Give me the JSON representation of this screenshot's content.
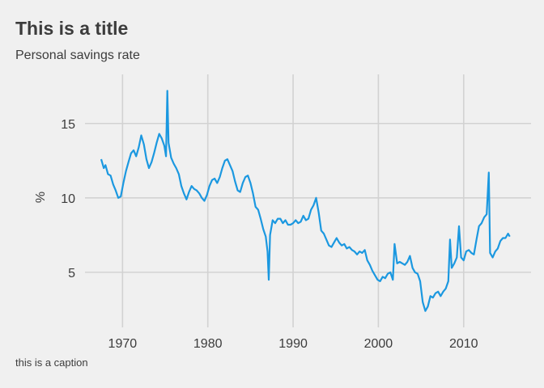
{
  "chart_data": {
    "type": "line",
    "title": "This is a title",
    "subtitle": "Personal savings rate",
    "caption": "this is a caption",
    "xlabel": "",
    "ylabel": "%",
    "xlim": [
      1965.6,
      2017.9
    ],
    "ylim": [
      1.3,
      18.3
    ],
    "xticks": [
      1970,
      1980,
      1990,
      2000,
      2010
    ],
    "yticks": [
      5,
      10,
      15
    ],
    "grid": true,
    "series_color": "#1b98e0",
    "series": [
      {
        "values": [
          [
            1967.5,
            12.6
          ],
          [
            1967.8,
            12.0
          ],
          [
            1968.0,
            12.2
          ],
          [
            1968.3,
            11.6
          ],
          [
            1968.6,
            11.5
          ],
          [
            1968.9,
            10.9
          ],
          [
            1969.2,
            10.5
          ],
          [
            1969.5,
            10.0
          ],
          [
            1969.8,
            10.1
          ],
          [
            1970.1,
            11.0
          ],
          [
            1970.4,
            11.8
          ],
          [
            1970.7,
            12.4
          ],
          [
            1971.0,
            13.0
          ],
          [
            1971.3,
            13.2
          ],
          [
            1971.6,
            12.8
          ],
          [
            1971.9,
            13.4
          ],
          [
            1972.2,
            14.2
          ],
          [
            1972.5,
            13.6
          ],
          [
            1972.8,
            12.6
          ],
          [
            1973.1,
            12.0
          ],
          [
            1973.4,
            12.4
          ],
          [
            1973.7,
            13.0
          ],
          [
            1974.0,
            13.7
          ],
          [
            1974.3,
            14.3
          ],
          [
            1974.6,
            14.0
          ],
          [
            1974.9,
            13.5
          ],
          [
            1975.1,
            12.8
          ],
          [
            1975.25,
            17.2
          ],
          [
            1975.4,
            13.7
          ],
          [
            1975.7,
            12.7
          ],
          [
            1976.0,
            12.3
          ],
          [
            1976.3,
            12.0
          ],
          [
            1976.6,
            11.6
          ],
          [
            1976.9,
            10.8
          ],
          [
            1977.2,
            10.3
          ],
          [
            1977.5,
            9.9
          ],
          [
            1977.8,
            10.4
          ],
          [
            1978.1,
            10.8
          ],
          [
            1978.4,
            10.6
          ],
          [
            1978.7,
            10.5
          ],
          [
            1979.0,
            10.3
          ],
          [
            1979.3,
            10.0
          ],
          [
            1979.6,
            9.8
          ],
          [
            1979.9,
            10.2
          ],
          [
            1980.2,
            10.8
          ],
          [
            1980.5,
            11.2
          ],
          [
            1980.8,
            11.3
          ],
          [
            1981.1,
            11.0
          ],
          [
            1981.4,
            11.4
          ],
          [
            1981.7,
            12.0
          ],
          [
            1982.0,
            12.5
          ],
          [
            1982.3,
            12.6
          ],
          [
            1982.6,
            12.2
          ],
          [
            1982.9,
            11.8
          ],
          [
            1983.2,
            11.1
          ],
          [
            1983.5,
            10.5
          ],
          [
            1983.8,
            10.4
          ],
          [
            1984.1,
            11.0
          ],
          [
            1984.4,
            11.4
          ],
          [
            1984.7,
            11.5
          ],
          [
            1985.0,
            11.0
          ],
          [
            1985.3,
            10.3
          ],
          [
            1985.6,
            9.4
          ],
          [
            1985.9,
            9.2
          ],
          [
            1986.2,
            8.6
          ],
          [
            1986.5,
            7.9
          ],
          [
            1986.8,
            7.4
          ],
          [
            1987.0,
            6.4
          ],
          [
            1987.15,
            4.5
          ],
          [
            1987.3,
            7.5
          ],
          [
            1987.6,
            8.5
          ],
          [
            1987.9,
            8.3
          ],
          [
            1988.2,
            8.6
          ],
          [
            1988.5,
            8.6
          ],
          [
            1988.8,
            8.3
          ],
          [
            1989.1,
            8.5
          ],
          [
            1989.4,
            8.2
          ],
          [
            1989.7,
            8.2
          ],
          [
            1990.0,
            8.3
          ],
          [
            1990.3,
            8.5
          ],
          [
            1990.6,
            8.3
          ],
          [
            1990.9,
            8.4
          ],
          [
            1991.2,
            8.8
          ],
          [
            1991.5,
            8.5
          ],
          [
            1991.8,
            8.6
          ],
          [
            1992.1,
            9.2
          ],
          [
            1992.4,
            9.5
          ],
          [
            1992.7,
            10.0
          ],
          [
            1993.0,
            9.0
          ],
          [
            1993.3,
            7.8
          ],
          [
            1993.6,
            7.6
          ],
          [
            1993.9,
            7.2
          ],
          [
            1994.2,
            6.8
          ],
          [
            1994.5,
            6.7
          ],
          [
            1994.8,
            7.0
          ],
          [
            1995.1,
            7.3
          ],
          [
            1995.4,
            7.0
          ],
          [
            1995.7,
            6.8
          ],
          [
            1996.0,
            6.9
          ],
          [
            1996.3,
            6.6
          ],
          [
            1996.6,
            6.7
          ],
          [
            1996.9,
            6.5
          ],
          [
            1997.2,
            6.4
          ],
          [
            1997.5,
            6.2
          ],
          [
            1997.8,
            6.4
          ],
          [
            1998.1,
            6.3
          ],
          [
            1998.4,
            6.5
          ],
          [
            1998.7,
            5.8
          ],
          [
            1999.0,
            5.5
          ],
          [
            1999.3,
            5.1
          ],
          [
            1999.6,
            4.8
          ],
          [
            1999.9,
            4.5
          ],
          [
            2000.2,
            4.4
          ],
          [
            2000.5,
            4.7
          ],
          [
            2000.8,
            4.6
          ],
          [
            2001.1,
            4.9
          ],
          [
            2001.4,
            5.0
          ],
          [
            2001.7,
            4.5
          ],
          [
            2001.9,
            6.9
          ],
          [
            2002.2,
            5.6
          ],
          [
            2002.5,
            5.7
          ],
          [
            2002.8,
            5.6
          ],
          [
            2003.1,
            5.5
          ],
          [
            2003.4,
            5.7
          ],
          [
            2003.7,
            6.1
          ],
          [
            2004.0,
            5.3
          ],
          [
            2004.3,
            5.0
          ],
          [
            2004.6,
            4.9
          ],
          [
            2004.9,
            4.4
          ],
          [
            2005.2,
            3.0
          ],
          [
            2005.5,
            2.4
          ],
          [
            2005.8,
            2.7
          ],
          [
            2006.1,
            3.4
          ],
          [
            2006.4,
            3.3
          ],
          [
            2006.7,
            3.6
          ],
          [
            2007.0,
            3.7
          ],
          [
            2007.3,
            3.4
          ],
          [
            2007.6,
            3.7
          ],
          [
            2007.9,
            3.9
          ],
          [
            2008.2,
            4.4
          ],
          [
            2008.4,
            7.2
          ],
          [
            2008.6,
            5.3
          ],
          [
            2008.9,
            5.6
          ],
          [
            2009.2,
            6.0
          ],
          [
            2009.45,
            8.1
          ],
          [
            2009.7,
            6.0
          ],
          [
            2010.0,
            5.8
          ],
          [
            2010.3,
            6.4
          ],
          [
            2010.6,
            6.5
          ],
          [
            2010.9,
            6.3
          ],
          [
            2011.2,
            6.2
          ],
          [
            2011.5,
            7.2
          ],
          [
            2011.8,
            8.1
          ],
          [
            2012.1,
            8.3
          ],
          [
            2012.4,
            8.7
          ],
          [
            2012.7,
            8.9
          ],
          [
            2012.95,
            11.7
          ],
          [
            2013.1,
            6.3
          ],
          [
            2013.4,
            6.0
          ],
          [
            2013.7,
            6.4
          ],
          [
            2014.0,
            6.6
          ],
          [
            2014.3,
            7.1
          ],
          [
            2014.6,
            7.3
          ],
          [
            2014.9,
            7.3
          ],
          [
            2015.2,
            7.6
          ],
          [
            2015.4,
            7.4
          ]
        ]
      }
    ]
  }
}
